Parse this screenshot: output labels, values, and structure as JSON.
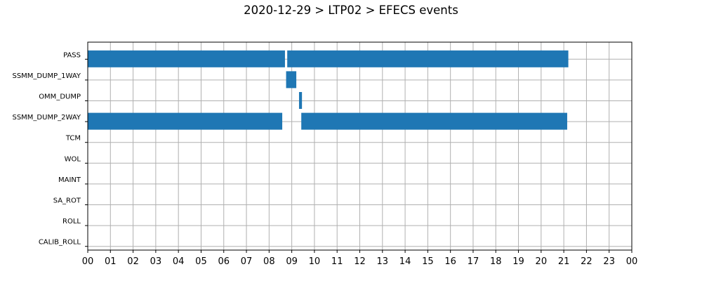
{
  "chart_data": {
    "type": "bar",
    "orientation": "horizontal",
    "title": "2020-12-29 > LTP02 > EFECS events",
    "xlabel": "",
    "ylabel": "",
    "xlim": [
      0,
      24
    ],
    "x_ticks": [
      "00",
      "01",
      "02",
      "03",
      "04",
      "05",
      "06",
      "07",
      "08",
      "09",
      "10",
      "11",
      "12",
      "13",
      "14",
      "15",
      "16",
      "17",
      "18",
      "19",
      "20",
      "21",
      "22",
      "23",
      "00"
    ],
    "categories": [
      "PASS",
      "SSMM_DUMP_1WAY",
      "OMM_DUMP",
      "SSMM_DUMP_2WAY",
      "TCM",
      "WOL",
      "MAINT",
      "SA_ROT",
      "ROLL",
      "CALIB_ROLL"
    ],
    "grid": true,
    "bar_color": "#1f77b4",
    "events": [
      {
        "category": "PASS",
        "start": 0.0,
        "end": 8.7
      },
      {
        "category": "PASS",
        "start": 8.8,
        "end": 21.2
      },
      {
        "category": "SSMM_DUMP_1WAY",
        "start": 8.75,
        "end": 9.2
      },
      {
        "category": "OMM_DUMP",
        "start": 9.32,
        "end": 9.45
      },
      {
        "category": "SSMM_DUMP_2WAY",
        "start": 0.0,
        "end": 8.58
      },
      {
        "category": "SSMM_DUMP_2WAY",
        "start": 9.42,
        "end": 21.15
      }
    ]
  }
}
